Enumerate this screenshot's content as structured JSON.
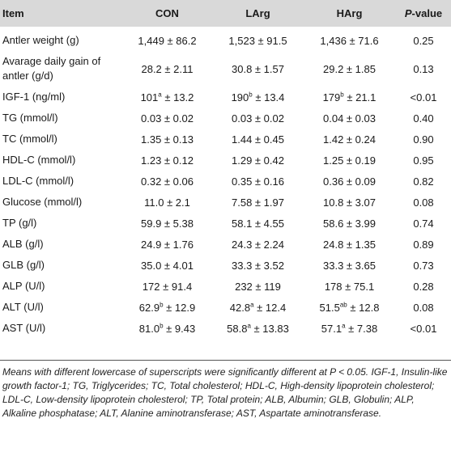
{
  "header": [
    "Item",
    "CON",
    "LArg",
    "HArg",
    "P-value"
  ],
  "header_pvalue": {
    "italic": "P",
    "rest": "-value"
  },
  "rows": [
    {
      "item": "Antler weight (g)",
      "con": {
        "v": "1,449",
        "s": "",
        "e": " ± 86.2"
      },
      "larg": {
        "v": "1,523",
        "s": "",
        "e": " ± 91.5"
      },
      "harg": {
        "v": "1,436",
        "s": "",
        "e": " ± 71.6"
      },
      "p": "0.25"
    },
    {
      "item": "Avarage daily gain of antler (g/d)",
      "con": {
        "v": "28.2",
        "s": "",
        "e": " ± 2.11"
      },
      "larg": {
        "v": "30.8",
        "s": "",
        "e": " ± 1.57"
      },
      "harg": {
        "v": "29.2",
        "s": "",
        "e": " ± 1.85"
      },
      "p": "0.13"
    },
    {
      "item": "IGF-1 (ng/ml)",
      "con": {
        "v": "101",
        "s": "a",
        "e": " ± 13.2"
      },
      "larg": {
        "v": "190",
        "s": "b",
        "e": " ± 13.4"
      },
      "harg": {
        "v": "179",
        "s": "b",
        "e": " ± 21.1"
      },
      "p": "<0.01"
    },
    {
      "item": "TG (mmol/l)",
      "con": {
        "v": "0.03",
        "s": "",
        "e": " ± 0.02"
      },
      "larg": {
        "v": "0.03",
        "s": "",
        "e": " ± 0.02"
      },
      "harg": {
        "v": "0.04",
        "s": "",
        "e": " ± 0.03"
      },
      "p": "0.40"
    },
    {
      "item": "TC (mmol/l)",
      "con": {
        "v": "1.35",
        "s": "",
        "e": " ± 0.13"
      },
      "larg": {
        "v": "1.44",
        "s": "",
        "e": " ± 0.45"
      },
      "harg": {
        "v": "1.42",
        "s": "",
        "e": " ± 0.24"
      },
      "p": "0.90"
    },
    {
      "item": "HDL-C (mmol/l)",
      "con": {
        "v": "1.23",
        "s": "",
        "e": " ± 0.12"
      },
      "larg": {
        "v": "1.29",
        "s": "",
        "e": " ± 0.42"
      },
      "harg": {
        "v": "1.25",
        "s": "",
        "e": " ± 0.19"
      },
      "p": "0.95"
    },
    {
      "item": "LDL-C (mmol/l)",
      "con": {
        "v": "0.32",
        "s": "",
        "e": " ± 0.06"
      },
      "larg": {
        "v": "0.35",
        "s": "",
        "e": " ± 0.16"
      },
      "harg": {
        "v": "0.36",
        "s": "",
        "e": " ± 0.09"
      },
      "p": "0.82"
    },
    {
      "item": "Glucose (mmol/l)",
      "con": {
        "v": "11.0",
        "s": "",
        "e": " ± 2.1"
      },
      "larg": {
        "v": "7.58",
        "s": "",
        "e": " ± 1.97"
      },
      "harg": {
        "v": "10.8",
        "s": "",
        "e": " ± 3.07"
      },
      "p": "0.08"
    },
    {
      "item": "TP (g/l)",
      "con": {
        "v": "59.9",
        "s": "",
        "e": " ± 5.38"
      },
      "larg": {
        "v": "58.1",
        "s": "",
        "e": " ± 4.55"
      },
      "harg": {
        "v": "58.6",
        "s": "",
        "e": " ± 3.99"
      },
      "p": "0.74"
    },
    {
      "item": "ALB (g/l)",
      "con": {
        "v": "24.9",
        "s": "",
        "e": " ± 1.76"
      },
      "larg": {
        "v": "24.3",
        "s": "",
        "e": " ± 2.24"
      },
      "harg": {
        "v": "24.8",
        "s": "",
        "e": " ± 1.35"
      },
      "p": "0.89"
    },
    {
      "item": "GLB (g/l)",
      "con": {
        "v": "35.0",
        "s": "",
        "e": " ± 4.01"
      },
      "larg": {
        "v": "33.3",
        "s": "",
        "e": " ± 3.52"
      },
      "harg": {
        "v": "33.3",
        "s": "",
        "e": " ± 3.65"
      },
      "p": "0.73"
    },
    {
      "item": "ALP (U/l)",
      "con": {
        "v": "172",
        "s": "",
        "e": " ± 91.4"
      },
      "larg": {
        "v": "232",
        "s": "",
        "e": " ± 119"
      },
      "harg": {
        "v": "178",
        "s": "",
        "e": " ± 75.1"
      },
      "p": "0.28"
    },
    {
      "item": "ALT (U/l)",
      "con": {
        "v": "62.9",
        "s": "b",
        "e": " ± 12.9"
      },
      "larg": {
        "v": "42.8",
        "s": "a",
        "e": " ± 12.4"
      },
      "harg": {
        "v": "51.5",
        "s": "ab",
        "e": " ± 12.8"
      },
      "p": "0.08"
    },
    {
      "item": "AST (U/l)",
      "con": {
        "v": "81.0",
        "s": "b",
        "e": " ± 9.43"
      },
      "larg": {
        "v": "58.8",
        "s": "a",
        "e": " ± 13.83"
      },
      "harg": {
        "v": "57.1",
        "s": "a",
        "e": " ± 7.38"
      },
      "p": "<0.01"
    }
  ],
  "footnote": "Means with different lowercase of superscripts were significantly different at P < 0.05. IGF-1, Insulin-like growth factor-1; TG, Triglycerides; TC, Total cholesterol; HDL-C, High-density lipoprotein cholesterol; LDL-C, Low-density lipoprotein cholesterol; TP, Total protein; ALB, Albumin; GLB, Globulin; ALP, Alkaline phosphatase; ALT, Alanine aminotransferase; AST, Aspartate aminotransferase.",
  "colors": {
    "header_bg": "#d9d9d9",
    "rule": "#555555",
    "text": "#1a1a1a"
  }
}
